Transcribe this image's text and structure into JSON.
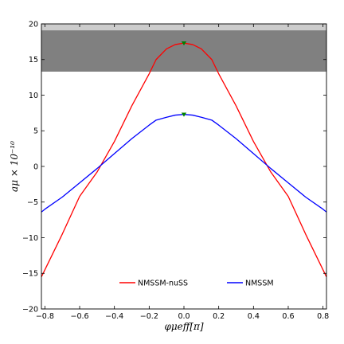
{
  "chart_data": {
    "type": "line",
    "title": "",
    "xlabel": "φμeff[π]",
    "ylabel": "aμ × 10⁻¹⁰",
    "xlim": [
      -0.82,
      0.82
    ],
    "ylim": [
      -20,
      20
    ],
    "x_ticks": [
      -0.8,
      -0.6,
      -0.4,
      -0.2,
      0.0,
      0.2,
      0.4,
      0.6,
      0.8
    ],
    "x_tick_labels": [
      "−0.8",
      "−0.6",
      "−0.4",
      "−0.2",
      "0.0",
      "0.2",
      "0.4",
      "0.6",
      "0.8"
    ],
    "y_ticks": [
      -20,
      -15,
      -10,
      -5,
      0,
      5,
      10,
      15,
      20
    ],
    "y_tick_labels": [
      "−20",
      "−15",
      "−10",
      "−5",
      "0",
      "5",
      "10",
      "15",
      "20"
    ],
    "grid": false,
    "legend_position": "lower-center",
    "bands": [
      {
        "name": "1σ band",
        "y_range": [
          13.3,
          19.1
        ],
        "color": "#808080"
      },
      {
        "name": "2σ band",
        "y_range": [
          19.1,
          20
        ],
        "color": "#cccccc"
      }
    ],
    "series": [
      {
        "name": "NMSSM-nuSS",
        "color": "#ff0000",
        "x": [
          -0.82,
          -0.8,
          -0.7,
          -0.6,
          -0.5,
          -0.4,
          -0.3,
          -0.2,
          -0.16,
          -0.1,
          -0.05,
          0.0,
          0.05,
          0.1,
          0.16,
          0.2,
          0.3,
          0.4,
          0.5,
          0.6,
          0.7,
          0.8,
          0.82
        ],
        "y": [
          -15.5,
          -14.5,
          -9.5,
          -4.2,
          -0.8,
          3.5,
          8.5,
          13.0,
          15.0,
          16.5,
          17.1,
          17.3,
          17.1,
          16.5,
          15.0,
          13.0,
          8.5,
          3.5,
          -0.8,
          -4.2,
          -9.5,
          -14.5,
          -15.5
        ],
        "markers": [
          {
            "x": 0.0,
            "y": 17.3,
            "color": "#008000"
          }
        ]
      },
      {
        "name": "NMSSM",
        "color": "#0000ff",
        "x": [
          -0.82,
          -0.8,
          -0.7,
          -0.6,
          -0.5,
          -0.4,
          -0.3,
          -0.2,
          -0.16,
          -0.1,
          -0.05,
          0.0,
          0.05,
          0.1,
          0.16,
          0.2,
          0.3,
          0.4,
          0.5,
          0.6,
          0.7,
          0.8,
          0.82
        ],
        "y": [
          -6.4,
          -6.0,
          -4.3,
          -2.3,
          -0.3,
          1.8,
          3.9,
          5.8,
          6.5,
          6.9,
          7.2,
          7.3,
          7.2,
          6.9,
          6.5,
          5.8,
          3.9,
          1.8,
          -0.3,
          -2.3,
          -4.3,
          -6.0,
          -6.4
        ],
        "markers": [
          {
            "x": 0.0,
            "y": 7.3,
            "color": "#008000"
          }
        ]
      }
    ]
  }
}
